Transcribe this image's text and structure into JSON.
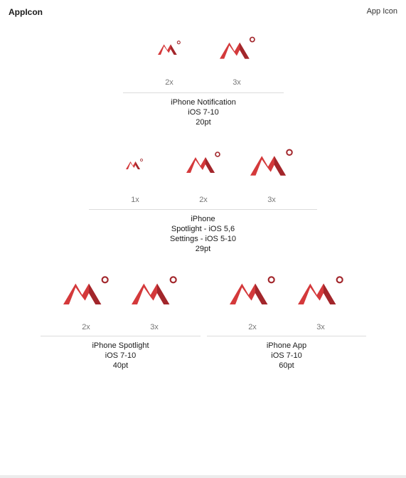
{
  "header": {
    "title": "AppIcon",
    "right_label": "App Icon"
  },
  "icon": {
    "name": "mountain-logo-icon",
    "color_light": "#d4393b",
    "color_dark": "#a2262b"
  },
  "groups": [
    {
      "id": "notification",
      "slots": [
        {
          "scale": "2x"
        },
        {
          "scale": "3x"
        }
      ],
      "caption": [
        "iPhone Notification",
        "iOS 7-10",
        "20pt"
      ]
    },
    {
      "id": "spotlight-settings",
      "slots": [
        {
          "scale": "1x"
        },
        {
          "scale": "2x"
        },
        {
          "scale": "3x"
        }
      ],
      "caption": [
        "iPhone",
        "Spotlight - iOS 5,6",
        "Settings - iOS 5-10",
        "29pt"
      ]
    },
    {
      "id": "spotlight",
      "slots": [
        {
          "scale": "2x"
        },
        {
          "scale": "3x"
        }
      ],
      "caption": [
        "iPhone Spotlight",
        "iOS 7-10",
        "40pt"
      ]
    },
    {
      "id": "app",
      "slots": [
        {
          "scale": "2x"
        },
        {
          "scale": "3x"
        }
      ],
      "caption": [
        "iPhone App",
        "iOS 7-10",
        "60pt"
      ]
    }
  ]
}
